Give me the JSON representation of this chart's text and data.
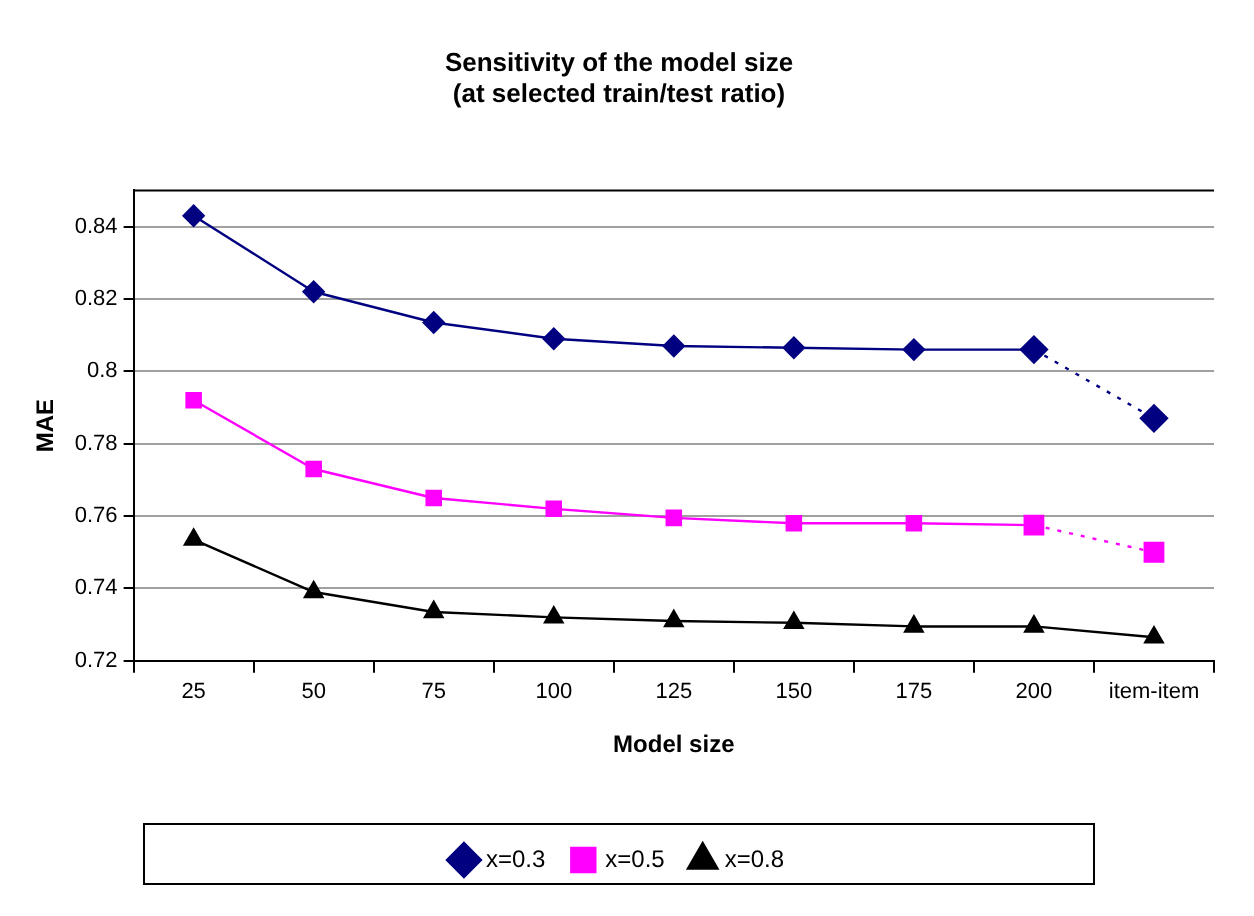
{
  "chart_data": {
    "type": "line",
    "title": [
      "Sensitivity of the model size",
      "(at selected train/test ratio)"
    ],
    "xlabel": "Model size",
    "ylabel": "MAE",
    "categories": [
      "25",
      "50",
      "75",
      "100",
      "125",
      "150",
      "175",
      "200",
      "item-item"
    ],
    "series": [
      {
        "name": "x=0.3",
        "color": "#000080",
        "marker": "diamond",
        "line_style": "solid",
        "values": [
          0.843,
          0.822,
          0.8135,
          0.809,
          0.807,
          0.8065,
          0.806,
          0.806,
          null
        ]
      },
      {
        "name": "x=0.5",
        "color": "#ff00ff",
        "marker": "square",
        "line_style": "solid",
        "values": [
          0.792,
          0.773,
          0.765,
          0.762,
          0.7595,
          0.758,
          0.758,
          0.7575,
          null
        ]
      },
      {
        "name": "x=0.8",
        "color": "#000000",
        "marker": "triangle",
        "line_style": "solid",
        "values": [
          0.7535,
          0.739,
          0.7335,
          0.732,
          0.731,
          0.7305,
          0.7295,
          0.7295,
          0.7265
        ]
      },
      {
        "color": "#000080",
        "marker": "diamond",
        "line_style": "dotted",
        "values": [
          null,
          null,
          null,
          null,
          null,
          null,
          null,
          0.806,
          0.787
        ]
      },
      {
        "color": "#ff00ff",
        "marker": "square",
        "line_style": "dotted",
        "values": [
          null,
          null,
          null,
          null,
          null,
          null,
          null,
          0.7575,
          0.75
        ]
      }
    ],
    "ylim": [
      0.72,
      0.85
    ],
    "yticks": [
      0.72,
      0.74,
      0.76,
      0.78,
      0.8,
      0.82,
      0.84
    ],
    "grid": "y",
    "legend": "bottom"
  }
}
